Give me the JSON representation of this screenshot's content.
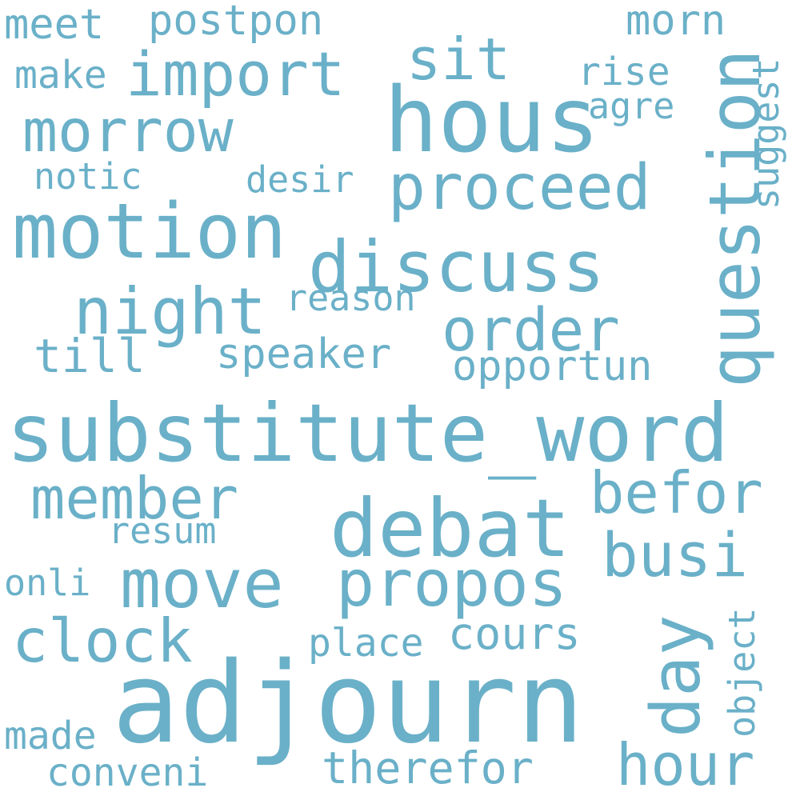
{
  "style": {
    "background": "#ffffff",
    "word_color": "#6ab0c8"
  },
  "words": {
    "adjourn": "adjourn",
    "substitute_word": "substitute_word",
    "hous": "hous",
    "motion": "motion",
    "debat": "debat",
    "discuss": "discuss",
    "question": "question",
    "move": "move",
    "propos": "propos",
    "proceed": "proceed",
    "import": "import",
    "morrow": "morrow",
    "night": "night",
    "order": "order",
    "member": "member",
    "befor": "befor",
    "busi": "busi",
    "day": "day",
    "clock": "clock",
    "hour": "hour",
    "sit": "sit",
    "speaker": "speaker",
    "opportun": "opportun",
    "postpon": "postpon",
    "meet": "meet",
    "morn": "morn",
    "rise": "rise",
    "suggest": "suggest",
    "agre": "agre",
    "make": "make",
    "notic": "notic",
    "desir": "desir",
    "reason": "reason",
    "till": "till",
    "resum": "resum",
    "onli": "onli",
    "object": "object",
    "place": "place",
    "cours": "cours",
    "made": "made",
    "conveni": "conveni",
    "therefor": "therefor"
  }
}
